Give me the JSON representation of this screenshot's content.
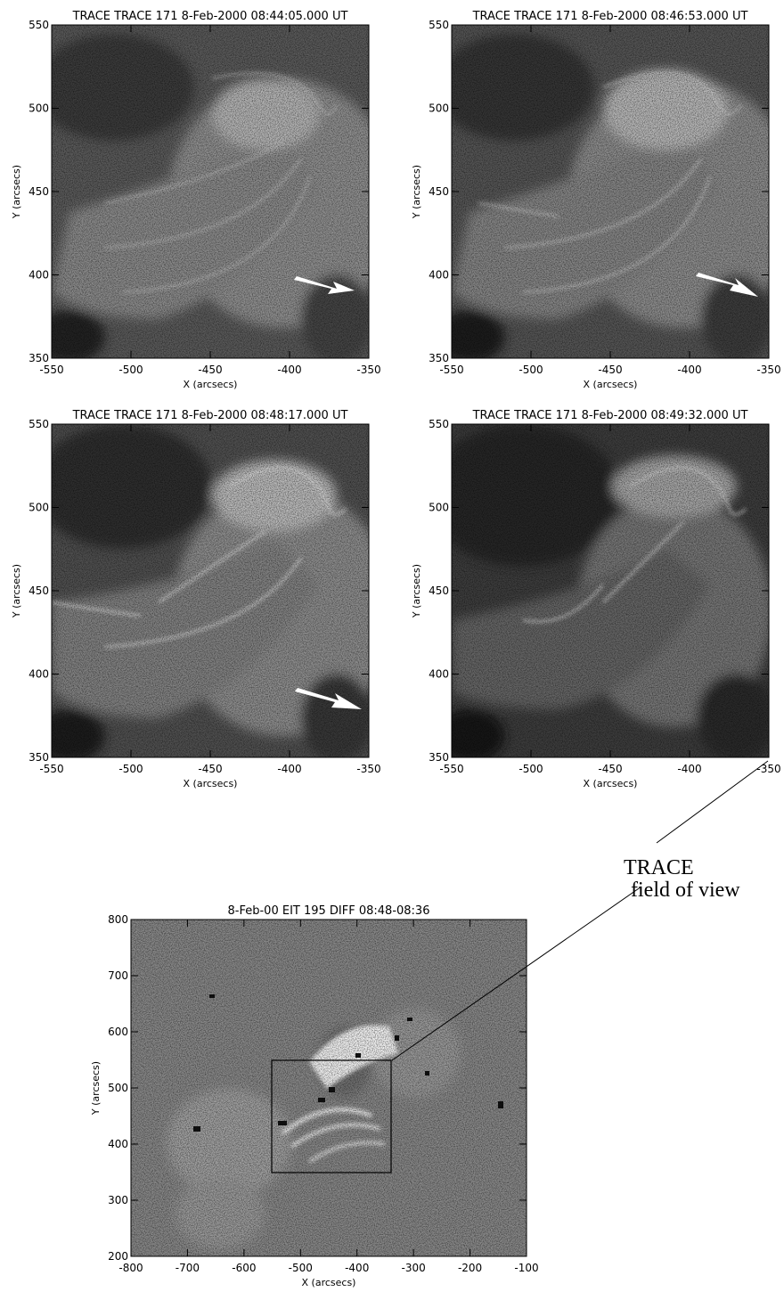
{
  "panels": [
    {
      "title": "TRACE TRACE 171   8-Feb-2000 08:44:05.000 UT",
      "xlabel": "X (arcsecs)",
      "ylabel": "Y (arcsecs)",
      "x_ticks": [
        "-550",
        "-500",
        "-450",
        "-400",
        "-350"
      ],
      "y_ticks": [
        "350",
        "400",
        "450",
        "500",
        "550"
      ]
    },
    {
      "title": "TRACE TRACE 171   8-Feb-2000 08:46:53.000 UT",
      "xlabel": "X (arcsecs)",
      "ylabel": "Y (arcsecs)",
      "x_ticks": [
        "-550",
        "-500",
        "-450",
        "-400",
        "-350"
      ],
      "y_ticks": [
        "350",
        "400",
        "450",
        "500",
        "550"
      ]
    },
    {
      "title": "TRACE TRACE 171   8-Feb-2000 08:48:17.000 UT",
      "xlabel": "X (arcsecs)",
      "ylabel": "Y (arcsecs)",
      "x_ticks": [
        "-550",
        "-500",
        "-450",
        "-400",
        "-350"
      ],
      "y_ticks": [
        "350",
        "400",
        "450",
        "500",
        "550"
      ]
    },
    {
      "title": "TRACE TRACE 171   8-Feb-2000 08:49:32.000 UT",
      "xlabel": "X (arcsecs)",
      "ylabel": "Y (arcsecs)",
      "x_ticks": [
        "-550",
        "-500",
        "-450",
        "-400",
        "-350"
      ],
      "y_ticks": [
        "350",
        "400",
        "450",
        "500",
        "550"
      ]
    }
  ],
  "eit": {
    "title": "8-Feb-00 EIT 195 DIFF 08:48-08:36",
    "xlabel": "X (arcsecs)",
    "ylabel": "Y (arcsecs)",
    "x_ticks": [
      "-800",
      "-700",
      "-600",
      "-500",
      "-400",
      "-300",
      "-200",
      "-100"
    ],
    "y_ticks": [
      "200",
      "300",
      "400",
      "500",
      "600",
      "700",
      "800"
    ]
  },
  "annotation": {
    "line1": "TRACE",
    "line2": "field of view"
  }
}
